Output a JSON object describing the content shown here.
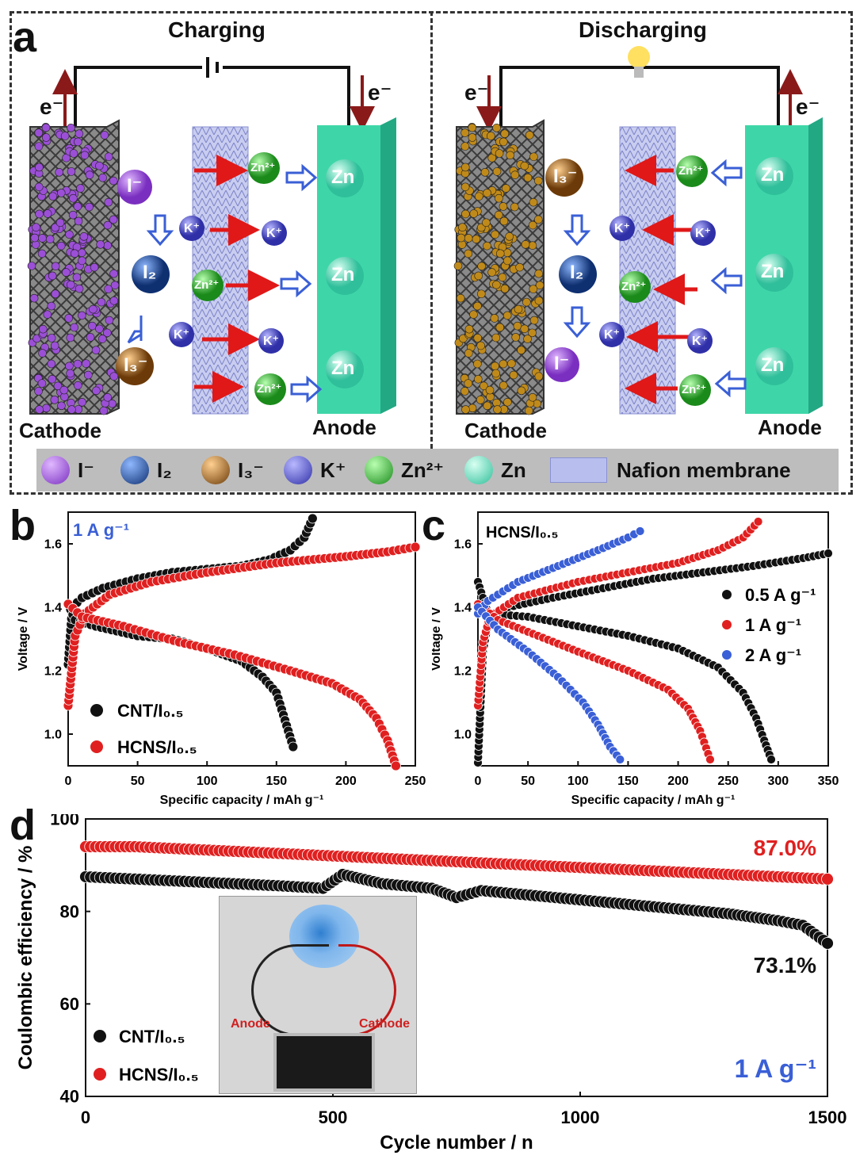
{
  "panel_a": {
    "letter": "a",
    "charging": {
      "title": "Charging",
      "electron_left": "e⁻",
      "electron_right": "e⁻",
      "cathode_label": "Cathode",
      "anode_label": "Anode",
      "zn": "Zn",
      "ions": {
        "iodide": "I⁻",
        "iodine": "I₂",
        "triiodide": "I₃⁻",
        "k": "K⁺",
        "zn2": "Zn²⁺"
      }
    },
    "discharging": {
      "title": "Discharging",
      "electron_left": "e⁻",
      "electron_right": "e⁻",
      "cathode_label": "Cathode",
      "anode_label": "Anode",
      "zn": "Zn",
      "ions": {
        "iodide": "I⁻",
        "iodine": "I₂",
        "triiodide": "I₃⁻",
        "k": "K⁺",
        "zn2": "Zn²⁺"
      }
    },
    "legend": [
      {
        "label": "I⁻",
        "color": "#9b4fd6"
      },
      {
        "label": "I₂",
        "color": "#1d4fa0"
      },
      {
        "label": "I₃⁻",
        "color": "#a8621a"
      },
      {
        "label": "K⁺",
        "color": "#4a4fd6"
      },
      {
        "label": "Zn²⁺",
        "color": "#2ea82e"
      },
      {
        "label": "Zn",
        "color": "#5fe0c0"
      },
      {
        "label": "Nafion membrane",
        "color": "#b8bfee"
      }
    ]
  },
  "panel_b": {
    "letter": "b"
  },
  "panel_c": {
    "letter": "c"
  },
  "panel_d": {
    "letter": "d",
    "inset": {
      "anode_label": "Anode",
      "cathode_label": "Cathode"
    }
  },
  "chart_data": [
    {
      "id": "b",
      "type": "scatter",
      "title": "",
      "annotation": "1 A g⁻¹",
      "xlabel": "Specific capacity / mAh g⁻¹",
      "ylabel": "Voltage / V",
      "xlim": [
        0,
        250
      ],
      "ylim": [
        0.9,
        1.7
      ],
      "xticks": [
        0,
        50,
        100,
        150,
        200,
        250
      ],
      "yticks": [
        1.0,
        1.2,
        1.4,
        1.6
      ],
      "legend": [
        {
          "name": "CNT/I₀.₅",
          "color": "#111111"
        },
        {
          "name": "HCNS/I₀.₅",
          "color": "#e02020"
        }
      ],
      "series": [
        {
          "name": "CNT/I0.5 charge",
          "color": "#111111",
          "points": [
            [
              0,
              1.22
            ],
            [
              3,
              1.4
            ],
            [
              10,
              1.43
            ],
            [
              25,
              1.46
            ],
            [
              50,
              1.49
            ],
            [
              75,
              1.51
            ],
            [
              100,
              1.52
            ],
            [
              125,
              1.53
            ],
            [
              145,
              1.55
            ],
            [
              160,
              1.58
            ],
            [
              170,
              1.62
            ],
            [
              176,
              1.68
            ]
          ]
        },
        {
          "name": "CNT/I0.5 discharge",
          "color": "#111111",
          "points": [
            [
              0,
              1.41
            ],
            [
              5,
              1.36
            ],
            [
              20,
              1.34
            ],
            [
              50,
              1.31
            ],
            [
              75,
              1.3
            ],
            [
              100,
              1.27
            ],
            [
              125,
              1.23
            ],
            [
              140,
              1.18
            ],
            [
              150,
              1.13
            ],
            [
              155,
              1.06
            ],
            [
              162,
              0.96
            ]
          ]
        },
        {
          "name": "HCNS/I0.5 charge",
          "color": "#e02020",
          "points": [
            [
              0,
              1.09
            ],
            [
              5,
              1.31
            ],
            [
              12,
              1.38
            ],
            [
              30,
              1.44
            ],
            [
              60,
              1.48
            ],
            [
              100,
              1.51
            ],
            [
              150,
              1.54
            ],
            [
              200,
              1.56
            ],
            [
              230,
              1.575
            ],
            [
              250,
              1.59
            ]
          ]
        },
        {
          "name": "HCNS/I0.5 discharge",
          "color": "#e02020",
          "points": [
            [
              0,
              1.41
            ],
            [
              10,
              1.37
            ],
            [
              40,
              1.34
            ],
            [
              80,
              1.29
            ],
            [
              120,
              1.25
            ],
            [
              160,
              1.2
            ],
            [
              190,
              1.16
            ],
            [
              210,
              1.11
            ],
            [
              222,
              1.05
            ],
            [
              230,
              0.98
            ],
            [
              236,
              0.9
            ]
          ]
        }
      ]
    },
    {
      "id": "c",
      "type": "scatter",
      "annotation": "HCNS/I₀.₅",
      "xlabel": "Specific capacity / mAh g⁻¹",
      "ylabel": "Voltage / V",
      "xlim": [
        0,
        350
      ],
      "ylim": [
        0.9,
        1.7
      ],
      "xticks": [
        0,
        50,
        100,
        150,
        200,
        250,
        300,
        350
      ],
      "yticks": [
        1.0,
        1.2,
        1.4,
        1.6
      ],
      "legend": [
        {
          "name": "0.5 A g⁻¹",
          "color": "#111111"
        },
        {
          "name": "1 A g⁻¹",
          "color": "#e02020"
        },
        {
          "name": "2 A g⁻¹",
          "color": "#3a5fd6"
        }
      ],
      "series": [
        {
          "name": "0.5 charge",
          "color": "#111111",
          "points": [
            [
              0,
              0.91
            ],
            [
              5,
              1.26
            ],
            [
              10,
              1.35
            ],
            [
              30,
              1.4
            ],
            [
              75,
              1.43
            ],
            [
              125,
              1.46
            ],
            [
              175,
              1.49
            ],
            [
              225,
              1.51
            ],
            [
              275,
              1.53
            ],
            [
              325,
              1.555
            ],
            [
              350,
              1.57
            ]
          ]
        },
        {
          "name": "0.5 discharge",
          "color": "#111111",
          "points": [
            [
              0,
              1.48
            ],
            [
              10,
              1.38
            ],
            [
              50,
              1.37
            ],
            [
              100,
              1.34
            ],
            [
              150,
              1.31
            ],
            [
              200,
              1.27
            ],
            [
              240,
              1.21
            ],
            [
              265,
              1.13
            ],
            [
              278,
              1.05
            ],
            [
              286,
              0.98
            ],
            [
              293,
              0.92
            ]
          ]
        },
        {
          "name": "1 charge",
          "color": "#e02020",
          "points": [
            [
              0,
              1.09
            ],
            [
              5,
              1.29
            ],
            [
              12,
              1.37
            ],
            [
              40,
              1.43
            ],
            [
              100,
              1.48
            ],
            [
              150,
              1.51
            ],
            [
              200,
              1.54
            ],
            [
              240,
              1.58
            ],
            [
              265,
              1.62
            ],
            [
              280,
              1.67
            ]
          ]
        },
        {
          "name": "1 discharge",
          "color": "#e02020",
          "points": [
            [
              0,
              1.41
            ],
            [
              20,
              1.36
            ],
            [
              60,
              1.31
            ],
            [
              100,
              1.26
            ],
            [
              150,
              1.2
            ],
            [
              190,
              1.14
            ],
            [
              210,
              1.08
            ],
            [
              222,
              1.01
            ],
            [
              232,
              0.92
            ]
          ]
        },
        {
          "name": "2 charge",
          "color": "#3a5fd6",
          "points": [
            [
              0,
              1.38
            ],
            [
              10,
              1.42
            ],
            [
              40,
              1.48
            ],
            [
              80,
              1.53
            ],
            [
              120,
              1.58
            ],
            [
              150,
              1.62
            ],
            [
              162,
              1.64
            ]
          ]
        },
        {
          "name": "2 discharge",
          "color": "#3a5fd6",
          "points": [
            [
              0,
              1.4
            ],
            [
              20,
              1.33
            ],
            [
              50,
              1.26
            ],
            [
              80,
              1.18
            ],
            [
              105,
              1.1
            ],
            [
              120,
              1.03
            ],
            [
              132,
              0.96
            ],
            [
              142,
              0.92
            ]
          ]
        }
      ]
    },
    {
      "id": "d",
      "type": "scatter",
      "xlabel": "Cycle number / n",
      "ylabel": "Coulombic efficiency / %",
      "xlim": [
        0,
        1500
      ],
      "ylim": [
        40,
        100
      ],
      "xticks": [
        0,
        500,
        1000,
        1500
      ],
      "yticks": [
        40,
        60,
        80,
        100
      ],
      "annotations": {
        "hcns_final": "87.0%",
        "cnt_final": "73.1%",
        "rate": "1 A g⁻¹"
      },
      "legend": [
        {
          "name": "CNT/I₀.₅",
          "color": "#111111"
        },
        {
          "name": "HCNS/I₀.₅",
          "color": "#e02020"
        }
      ],
      "series": [
        {
          "name": "CNT/I0.5",
          "color": "#111111",
          "points": [
            [
              0,
              87.5
            ],
            [
              100,
              87
            ],
            [
              200,
              86.5
            ],
            [
              300,
              86
            ],
            [
              400,
              85.5
            ],
            [
              480,
              85
            ],
            [
              520,
              88
            ],
            [
              600,
              86
            ],
            [
              700,
              85
            ],
            [
              750,
              83
            ],
            [
              800,
              84.5
            ],
            [
              900,
              83.5
            ],
            [
              1000,
              82.5
            ],
            [
              1100,
              81.5
            ],
            [
              1200,
              80.5
            ],
            [
              1300,
              79.5
            ],
            [
              1400,
              78
            ],
            [
              1450,
              77
            ],
            [
              1500,
              73.1
            ]
          ]
        },
        {
          "name": "HCNS/I0.5",
          "color": "#e02020",
          "points": [
            [
              0,
              94
            ],
            [
              100,
              94
            ],
            [
              200,
              93.5
            ],
            [
              300,
              93
            ],
            [
              400,
              92.5
            ],
            [
              500,
              92
            ],
            [
              600,
              91.5
            ],
            [
              700,
              91
            ],
            [
              800,
              90.5
            ],
            [
              900,
              90
            ],
            [
              1000,
              89.5
            ],
            [
              1100,
              89
            ],
            [
              1200,
              88.5
            ],
            [
              1300,
              88
            ],
            [
              1400,
              87.5
            ],
            [
              1500,
              87.0
            ]
          ]
        }
      ]
    }
  ]
}
